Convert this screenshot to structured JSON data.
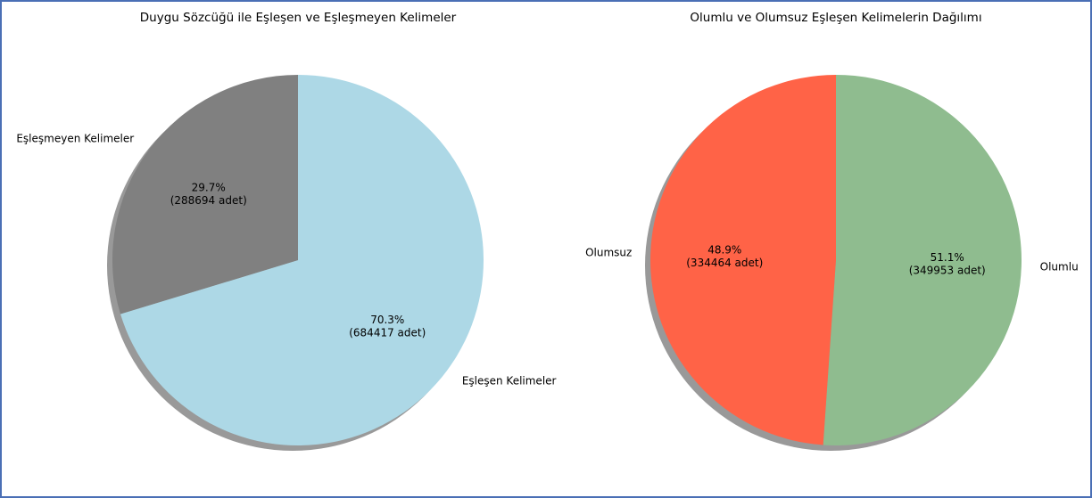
{
  "chart_data": [
    {
      "type": "pie",
      "title": "Duygu Sözcüğü ile Eşleşen ve Eşleşmeyen Kelimeler",
      "categories": [
        "Eşleşen Kelimeler",
        "Eşleşmeyen Kelimeler"
      ],
      "values": [
        70.3,
        29.7
      ],
      "value_labels": [
        "70.3%\n(684417 adet)",
        "29.7%\n(288694 adet)"
      ],
      "colors": [
        "#add8e6",
        "#808080"
      ],
      "shadow": true
    },
    {
      "type": "pie",
      "title": "Olumlu ve Olumsuz Eşleşen Kelimelerin Dağılımı",
      "categories": [
        "Olumlu",
        "Olumsuz"
      ],
      "values": [
        51.1,
        48.9
      ],
      "value_labels": [
        "51.1%\n(349953 adet)",
        "48.9%\n(334464 adet)"
      ],
      "colors": [
        "#8fbc8f",
        "#ff6347"
      ],
      "shadow": true
    }
  ]
}
